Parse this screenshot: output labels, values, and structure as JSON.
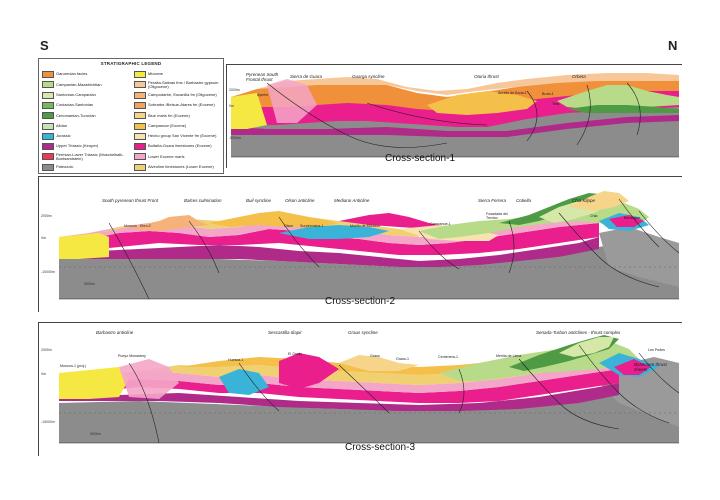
{
  "compass": {
    "south": "S",
    "north": "N"
  },
  "legend": {
    "title": "STRATIGRAPHIC LEGEND",
    "items": [
      {
        "label": "Garumnian facies",
        "color": "#f0903a"
      },
      {
        "label": "Campanian-Maastrichtian",
        "color": "#b8db8a"
      },
      {
        "label": "Santonian-Campanian",
        "color": "#d6e8a8"
      },
      {
        "label": "Coniacian-Santonian",
        "color": "#7ab85a"
      },
      {
        "label": "Cenomanian-Turonian",
        "color": "#4f9a45"
      },
      {
        "label": "Albian",
        "color": "#c7e0b8"
      },
      {
        "label": "Jurassic",
        "color": "#39b4d8"
      },
      {
        "label": "Upper Triassic (Keuper)",
        "color": "#b02a8a"
      },
      {
        "label": "Permian-Lower Triassic (Muschelkalk-Buntsandstein)",
        "color": "#e83a5a"
      },
      {
        "label": "Paleozoic",
        "color": "#8c8c8c"
      },
      {
        "label": "Miocene",
        "color": "#f5e842"
      },
      {
        "label": "Peralta-Salinas fms / Barbastro gypsum (Oligocene)",
        "color": "#f7c79a"
      },
      {
        "label": "Campodarbe, Escanilla fm (Oligocene)",
        "color": "#f5b37a"
      },
      {
        "label": "Sobrarbe /Belsue-Atares fm (Eocene)",
        "color": "#f2a35e"
      },
      {
        "label": "Blue marls fm (Eocene)",
        "color": "#f6d58a"
      },
      {
        "label": "Campanuar (Eocene)",
        "color": "#f4c04a"
      },
      {
        "label": "Hecho group San Vicente fm (Eocene)",
        "color": "#f7e2b0"
      },
      {
        "label": "Boltaña-Guara limestones (Eocene)",
        "color": "#ea1e8c"
      },
      {
        "label": "Lower Eocene marls",
        "color": "#f4a6c8"
      },
      {
        "label": "Alveoline limestones (Lower Eocene)",
        "color": "#f0d070"
      }
    ]
  },
  "sections": [
    {
      "title": "Cross-section-1",
      "annotations": [
        "Pyrenean South Frontal thrust",
        "Sierra de Guara",
        "Guarga syncline",
        "Oturia thrust",
        "Orbeta"
      ],
      "wells": [
        "Ayerbe",
        "Aurelio de Boria-1",
        "Broto-1",
        "Tella"
      ],
      "scale": [
        "2000m",
        "0m",
        "-5000m"
      ]
    },
    {
      "title": "Cross-section-2",
      "annotations": [
        "South pyrenean thrust Front",
        "Balces culmination",
        "Buil syncline",
        "Olson anticline",
        "Mediano Anticline",
        "Sierra Ferrera",
        "Cotiella",
        "Chia Klippe"
      ],
      "wells": [
        "Monzon",
        "Ebro-2",
        "Olson",
        "Surpirenaica-1",
        "Morillo de Monclus",
        "Campanue-1",
        "Fosadada del Treviso",
        "Chia",
        "Benasque"
      ],
      "scale": [
        "2000m",
        "0m",
        "-10000m",
        "5000m"
      ]
    },
    {
      "title": "Cross-section-3",
      "annotations": [
        "Barbastro anticline",
        "Sescastilla diapir",
        "Graus syncline",
        "Senada-Turbon anticlines - thrust complex",
        "Basement thrust sheets"
      ],
      "wells": [
        "Monzon-1 (proj.)",
        "Pueyo Monastery",
        "Huesca-1",
        "El Grado",
        "Graus",
        "Graus-1",
        "Centenera-1",
        "Merilla de Liena",
        "Les Pedes"
      ],
      "scale": [
        "2000m",
        "0m",
        "-10000m",
        "5000m"
      ]
    }
  ]
}
